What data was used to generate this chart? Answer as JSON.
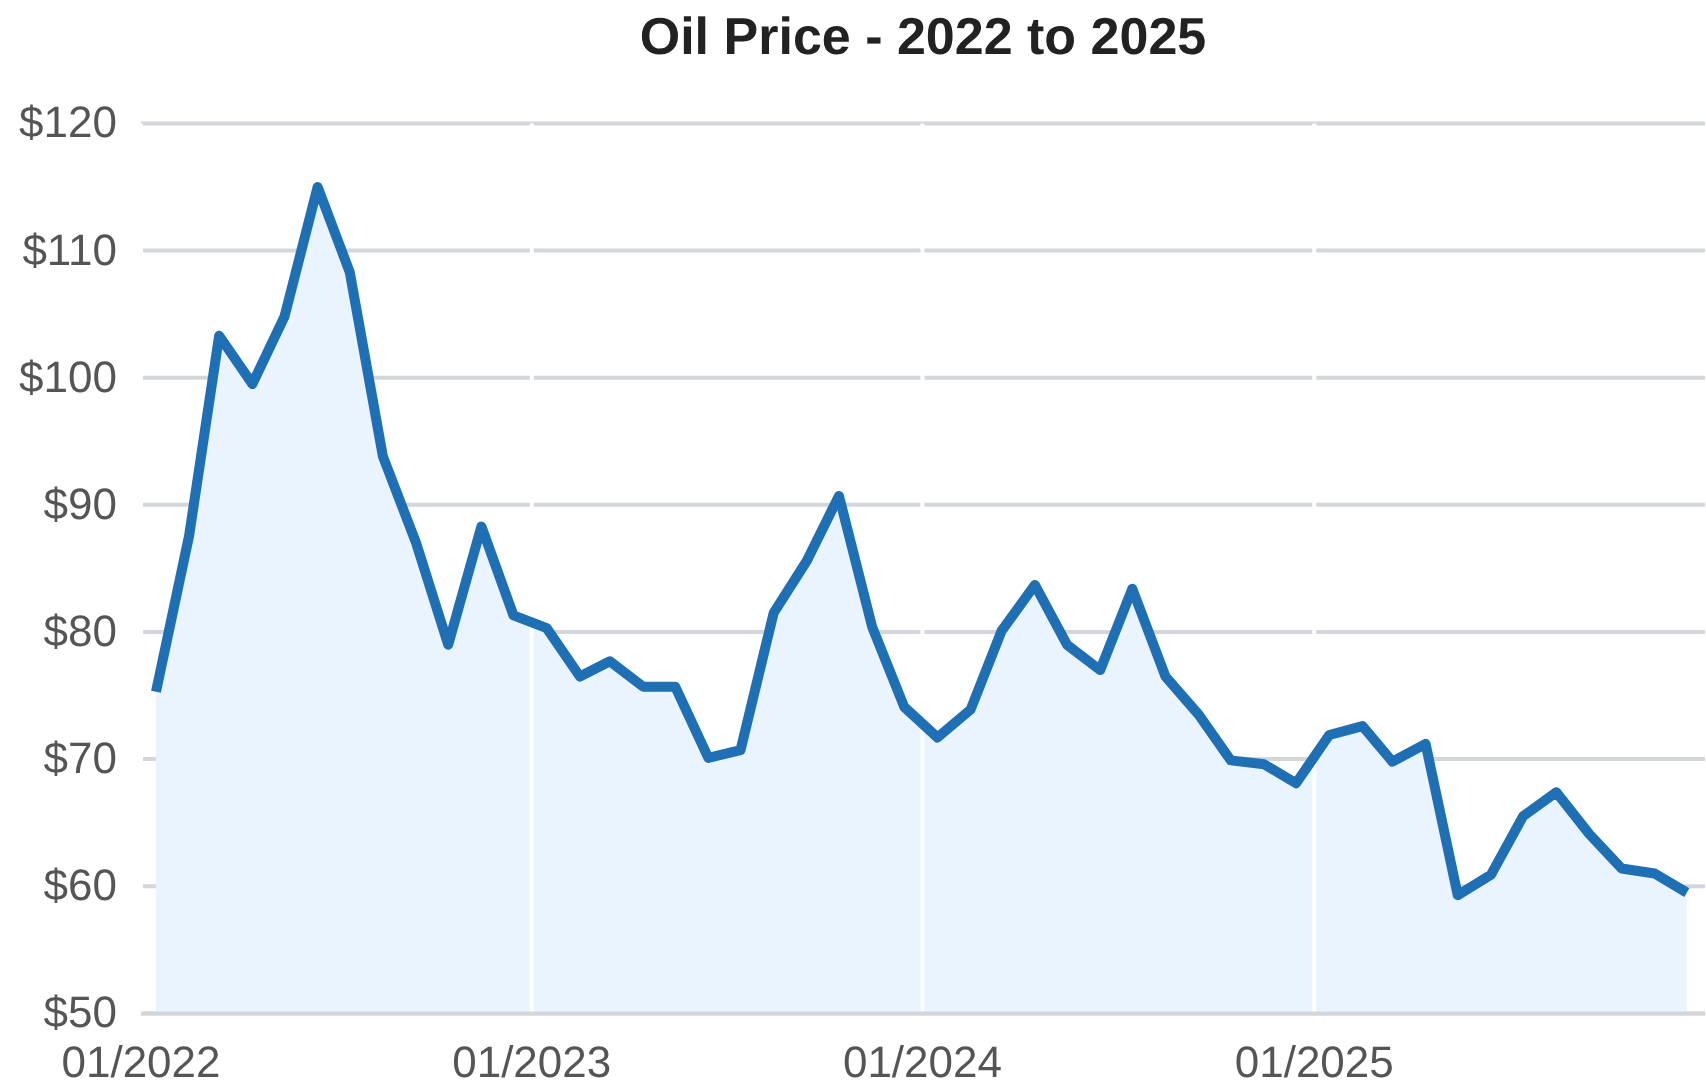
{
  "chart_data": {
    "type": "area",
    "title": "Oil Price - 2022 to 2025",
    "x": [
      "2022-01-15",
      "2022-02-15",
      "2022-03-15",
      "2022-04-15",
      "2022-05-15",
      "2022-06-15",
      "2022-07-15",
      "2022-08-15",
      "2022-09-15",
      "2022-10-15",
      "2022-11-15",
      "2022-12-15",
      "2023-01-15",
      "2023-02-15",
      "2023-03-15",
      "2023-04-15",
      "2023-05-15",
      "2023-06-15",
      "2023-07-15",
      "2023-08-15",
      "2023-09-15",
      "2023-10-15",
      "2023-11-15",
      "2023-12-15",
      "2024-01-15",
      "2024-02-15",
      "2024-03-15",
      "2024-04-15",
      "2024-05-15",
      "2024-06-15",
      "2024-07-15",
      "2024-08-15",
      "2024-09-15",
      "2024-10-15",
      "2024-11-15",
      "2024-12-15",
      "2025-01-15",
      "2025-02-15",
      "2025-03-15",
      "2025-04-15",
      "2025-05-15",
      "2025-06-15",
      "2025-07-15",
      "2025-08-15",
      "2025-09-15",
      "2025-10-15",
      "2025-11-15",
      "2025-12-15"
    ],
    "series": [
      {
        "color": "#1f6fb5",
        "values": [
          75.3,
          87.6,
          103.3,
          99.5,
          104.8,
          115.0,
          108.3,
          93.8,
          87.0,
          79.0,
          88.3,
          81.3,
          80.3,
          76.5,
          77.7,
          75.7,
          75.7,
          70.1,
          70.7,
          81.5,
          85.6,
          90.7,
          80.4,
          74.1,
          71.7,
          73.9,
          80.1,
          83.7,
          79.0,
          77.0,
          83.4,
          76.5,
          73.5,
          69.9,
          69.6,
          68.1,
          71.9,
          72.6,
          69.8,
          71.2,
          59.3,
          60.9,
          65.5,
          67.4,
          64.1,
          61.4,
          61.0,
          59.5
        ]
      }
    ],
    "xlim": [
      "2022-01-01",
      "2026-01-01"
    ],
    "xticks": [
      {
        "value": "2022-01-01",
        "label": "01/2022"
      },
      {
        "value": "2023-01-01",
        "label": "01/2023"
      },
      {
        "value": "2024-01-01",
        "label": "01/2024"
      },
      {
        "value": "2025-01-01",
        "label": "01/2025"
      }
    ],
    "ylim": [
      50,
      120
    ],
    "yticks": [
      {
        "value": 50,
        "label": "$50"
      },
      {
        "value": 60,
        "label": "$60"
      },
      {
        "value": 70,
        "label": "$70"
      },
      {
        "value": 80,
        "label": "$80"
      },
      {
        "value": 90,
        "label": "$90"
      },
      {
        "value": 100,
        "label": "$100"
      },
      {
        "value": 110,
        "label": "$110"
      },
      {
        "value": 120,
        "label": "$120"
      }
    ],
    "grid": true
  }
}
